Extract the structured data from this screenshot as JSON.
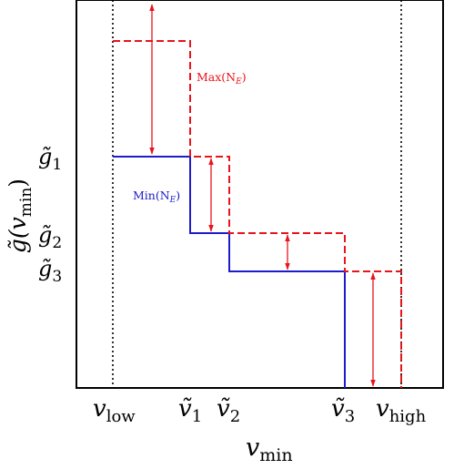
{
  "diagram": {
    "y_axis_label": {
      "main": "g̃(v",
      "sub": "min",
      "close": ")"
    },
    "x_axis_label": {
      "main": "v",
      "sub": "min"
    },
    "x_ticks": [
      {
        "main": "v",
        "sub": "low"
      },
      {
        "main": "ṽ",
        "sub": "1"
      },
      {
        "main": "ṽ",
        "sub": "2"
      },
      {
        "main": "ṽ",
        "sub": "3"
      },
      {
        "main": "v",
        "sub": "high"
      }
    ],
    "y_ticks": [
      {
        "main": "g̃",
        "sub": "1"
      },
      {
        "main": "g̃",
        "sub": "2"
      },
      {
        "main": "g̃",
        "sub": "3"
      }
    ],
    "curve_labels": {
      "max": {
        "prefix": "Max(N",
        "sub": "E",
        "suffix": ")"
      },
      "min": {
        "prefix": "Min(N",
        "sub": "E",
        "suffix": ")"
      }
    },
    "colors": {
      "max_curve": "#e8141b",
      "min_curve": "#1c1ccc",
      "axes": "#000000",
      "guides": "#000000"
    }
  }
}
